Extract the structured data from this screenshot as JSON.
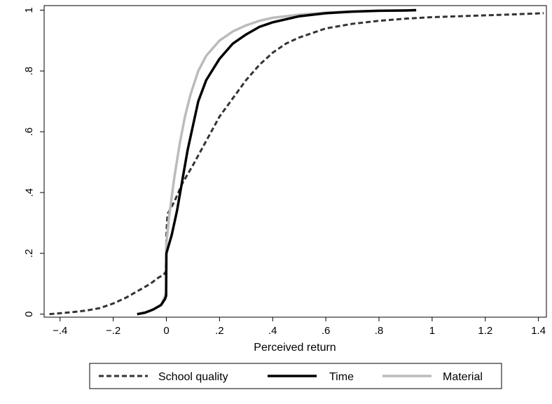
{
  "chart_data": {
    "type": "line",
    "title": "",
    "xlabel": "Perceived return",
    "ylabel": "",
    "xlim": [
      -0.46,
      1.43
    ],
    "ylim": [
      -0.01,
      1.015
    ],
    "x_ticks": [
      -0.4,
      -0.2,
      0,
      0.2,
      0.4,
      0.6,
      0.8,
      1,
      1.2,
      1.4
    ],
    "x_tick_labels": [
      "−.4",
      "−.2",
      "0",
      ".2",
      ".4",
      ".6",
      ".8",
      "1",
      "1.2",
      "1.4"
    ],
    "y_ticks": [
      0,
      0.2,
      0.4,
      0.6,
      0.8,
      1
    ],
    "y_tick_labels": [
      "0",
      ".2",
      ".4",
      ".6",
      ".8",
      "1"
    ],
    "grid": false,
    "legend_position": "bottom",
    "series": [
      {
        "name": "School quality",
        "style": "dashed",
        "color": "#333333",
        "points": [
          [
            -0.44,
            0.0
          ],
          [
            -0.4,
            0.003
          ],
          [
            -0.35,
            0.007
          ],
          [
            -0.3,
            0.012
          ],
          [
            -0.25,
            0.02
          ],
          [
            -0.2,
            0.035
          ],
          [
            -0.15,
            0.055
          ],
          [
            -0.1,
            0.08
          ],
          [
            -0.06,
            0.1
          ],
          [
            -0.03,
            0.12
          ],
          [
            -0.01,
            0.13
          ],
          [
            -0.002,
            0.14
          ],
          [
            0.0,
            0.25
          ],
          [
            0.002,
            0.3
          ],
          [
            0.005,
            0.33
          ],
          [
            0.03,
            0.37
          ],
          [
            0.06,
            0.43
          ],
          [
            0.1,
            0.49
          ],
          [
            0.15,
            0.57
          ],
          [
            0.2,
            0.65
          ],
          [
            0.25,
            0.71
          ],
          [
            0.3,
            0.77
          ],
          [
            0.35,
            0.82
          ],
          [
            0.4,
            0.86
          ],
          [
            0.45,
            0.89
          ],
          [
            0.5,
            0.91
          ],
          [
            0.6,
            0.94
          ],
          [
            0.7,
            0.955
          ],
          [
            0.8,
            0.965
          ],
          [
            0.9,
            0.972
          ],
          [
            1.0,
            0.977
          ],
          [
            1.1,
            0.98
          ],
          [
            1.2,
            0.983
          ],
          [
            1.3,
            0.986
          ],
          [
            1.42,
            0.99
          ]
        ]
      },
      {
        "name": "Time",
        "style": "solid",
        "color": "#000000",
        "points": [
          [
            -0.11,
            0.0
          ],
          [
            -0.08,
            0.005
          ],
          [
            -0.05,
            0.015
          ],
          [
            -0.02,
            0.03
          ],
          [
            -0.005,
            0.05
          ],
          [
            -0.001,
            0.06
          ],
          [
            0.0,
            0.2
          ],
          [
            0.02,
            0.26
          ],
          [
            0.04,
            0.34
          ],
          [
            0.06,
            0.44
          ],
          [
            0.08,
            0.54
          ],
          [
            0.1,
            0.62
          ],
          [
            0.12,
            0.7
          ],
          [
            0.15,
            0.77
          ],
          [
            0.2,
            0.84
          ],
          [
            0.25,
            0.89
          ],
          [
            0.3,
            0.92
          ],
          [
            0.35,
            0.945
          ],
          [
            0.4,
            0.96
          ],
          [
            0.5,
            0.98
          ],
          [
            0.6,
            0.99
          ],
          [
            0.7,
            0.995
          ],
          [
            0.8,
            0.998
          ],
          [
            0.9,
            0.999
          ],
          [
            0.94,
            1.0
          ]
        ]
      },
      {
        "name": "Material",
        "style": "solid",
        "color": "#bbbbbb",
        "points": [
          [
            -0.11,
            0.0
          ],
          [
            -0.08,
            0.005
          ],
          [
            -0.05,
            0.015
          ],
          [
            -0.02,
            0.03
          ],
          [
            -0.005,
            0.06
          ],
          [
            -0.001,
            0.07
          ],
          [
            0.0,
            0.23
          ],
          [
            0.01,
            0.32
          ],
          [
            0.03,
            0.45
          ],
          [
            0.05,
            0.56
          ],
          [
            0.07,
            0.65
          ],
          [
            0.09,
            0.72
          ],
          [
            0.12,
            0.8
          ],
          [
            0.15,
            0.85
          ],
          [
            0.2,
            0.9
          ],
          [
            0.25,
            0.93
          ],
          [
            0.3,
            0.95
          ],
          [
            0.35,
            0.965
          ],
          [
            0.4,
            0.975
          ],
          [
            0.5,
            0.985
          ],
          [
            0.6,
            0.992
          ],
          [
            0.7,
            0.996
          ],
          [
            0.8,
            0.998
          ],
          [
            0.94,
            1.0
          ]
        ]
      }
    ]
  }
}
